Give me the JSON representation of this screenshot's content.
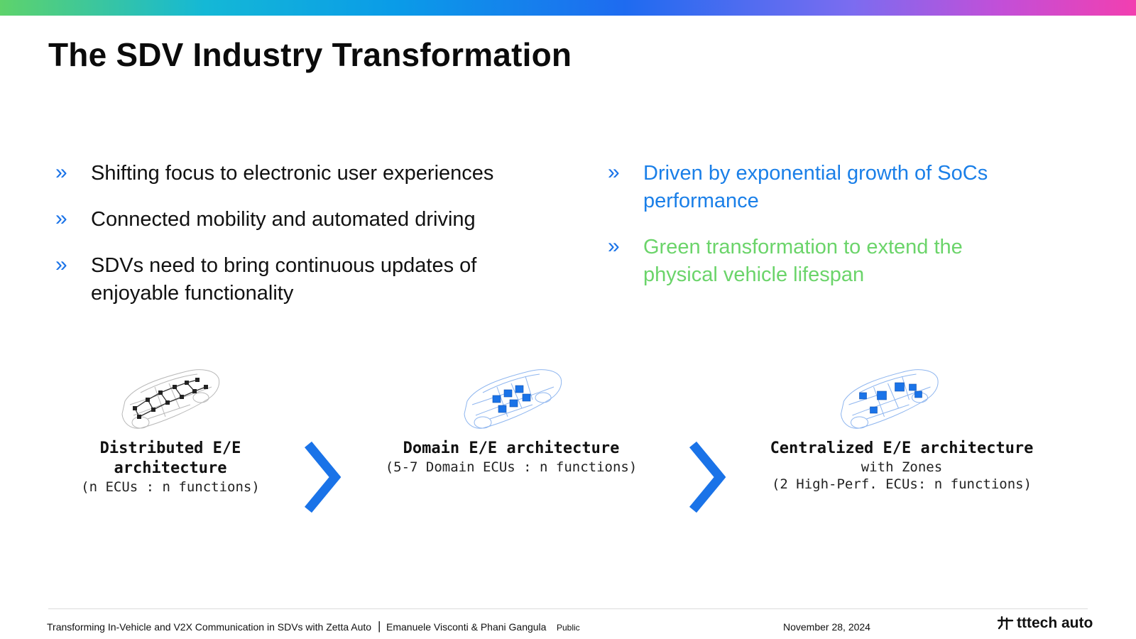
{
  "slide": {
    "title": "The SDV Industry Transformation"
  },
  "bullets_left": [
    {
      "text": "Shifting focus to electronic user experiences"
    },
    {
      "text": "Connected mobility and automated driving"
    },
    {
      "text": "SDVs need to bring continuous updates of enjoyable functionality"
    }
  ],
  "bullets_right": [
    {
      "text": "Driven by exponential growth of SoCs performance",
      "color": "#1a7fe8"
    },
    {
      "text": "Green transformation to extend the physical vehicle lifespan",
      "color": "#6bd46a"
    }
  ],
  "bullet_icon": "double-chevron-right-icon",
  "architectures": [
    {
      "head": "Distributed E/E architecture",
      "sub1": "(n ECUs : n functions)",
      "sub2": ""
    },
    {
      "head": "Domain E/E architecture",
      "sub1": "(5-7 Domain ECUs : n functions)",
      "sub2": ""
    },
    {
      "head": "Centralized E/E architecture",
      "sub1": "with Zones",
      "sub2": "(2 High-Perf. ECUs: n functions)"
    }
  ],
  "footer": {
    "presentation": "Transforming In-Vehicle and V2X Communication in SDVs with Zetta Auto",
    "separator": "|",
    "authors": "Emanuele Visconti & Phani Gangula",
    "classification": "Public",
    "date": "November 28, 2024",
    "logo_text": "tttech auto"
  },
  "colors": {
    "accent_blue": "#1a73e8",
    "green": "#6bd46a"
  }
}
